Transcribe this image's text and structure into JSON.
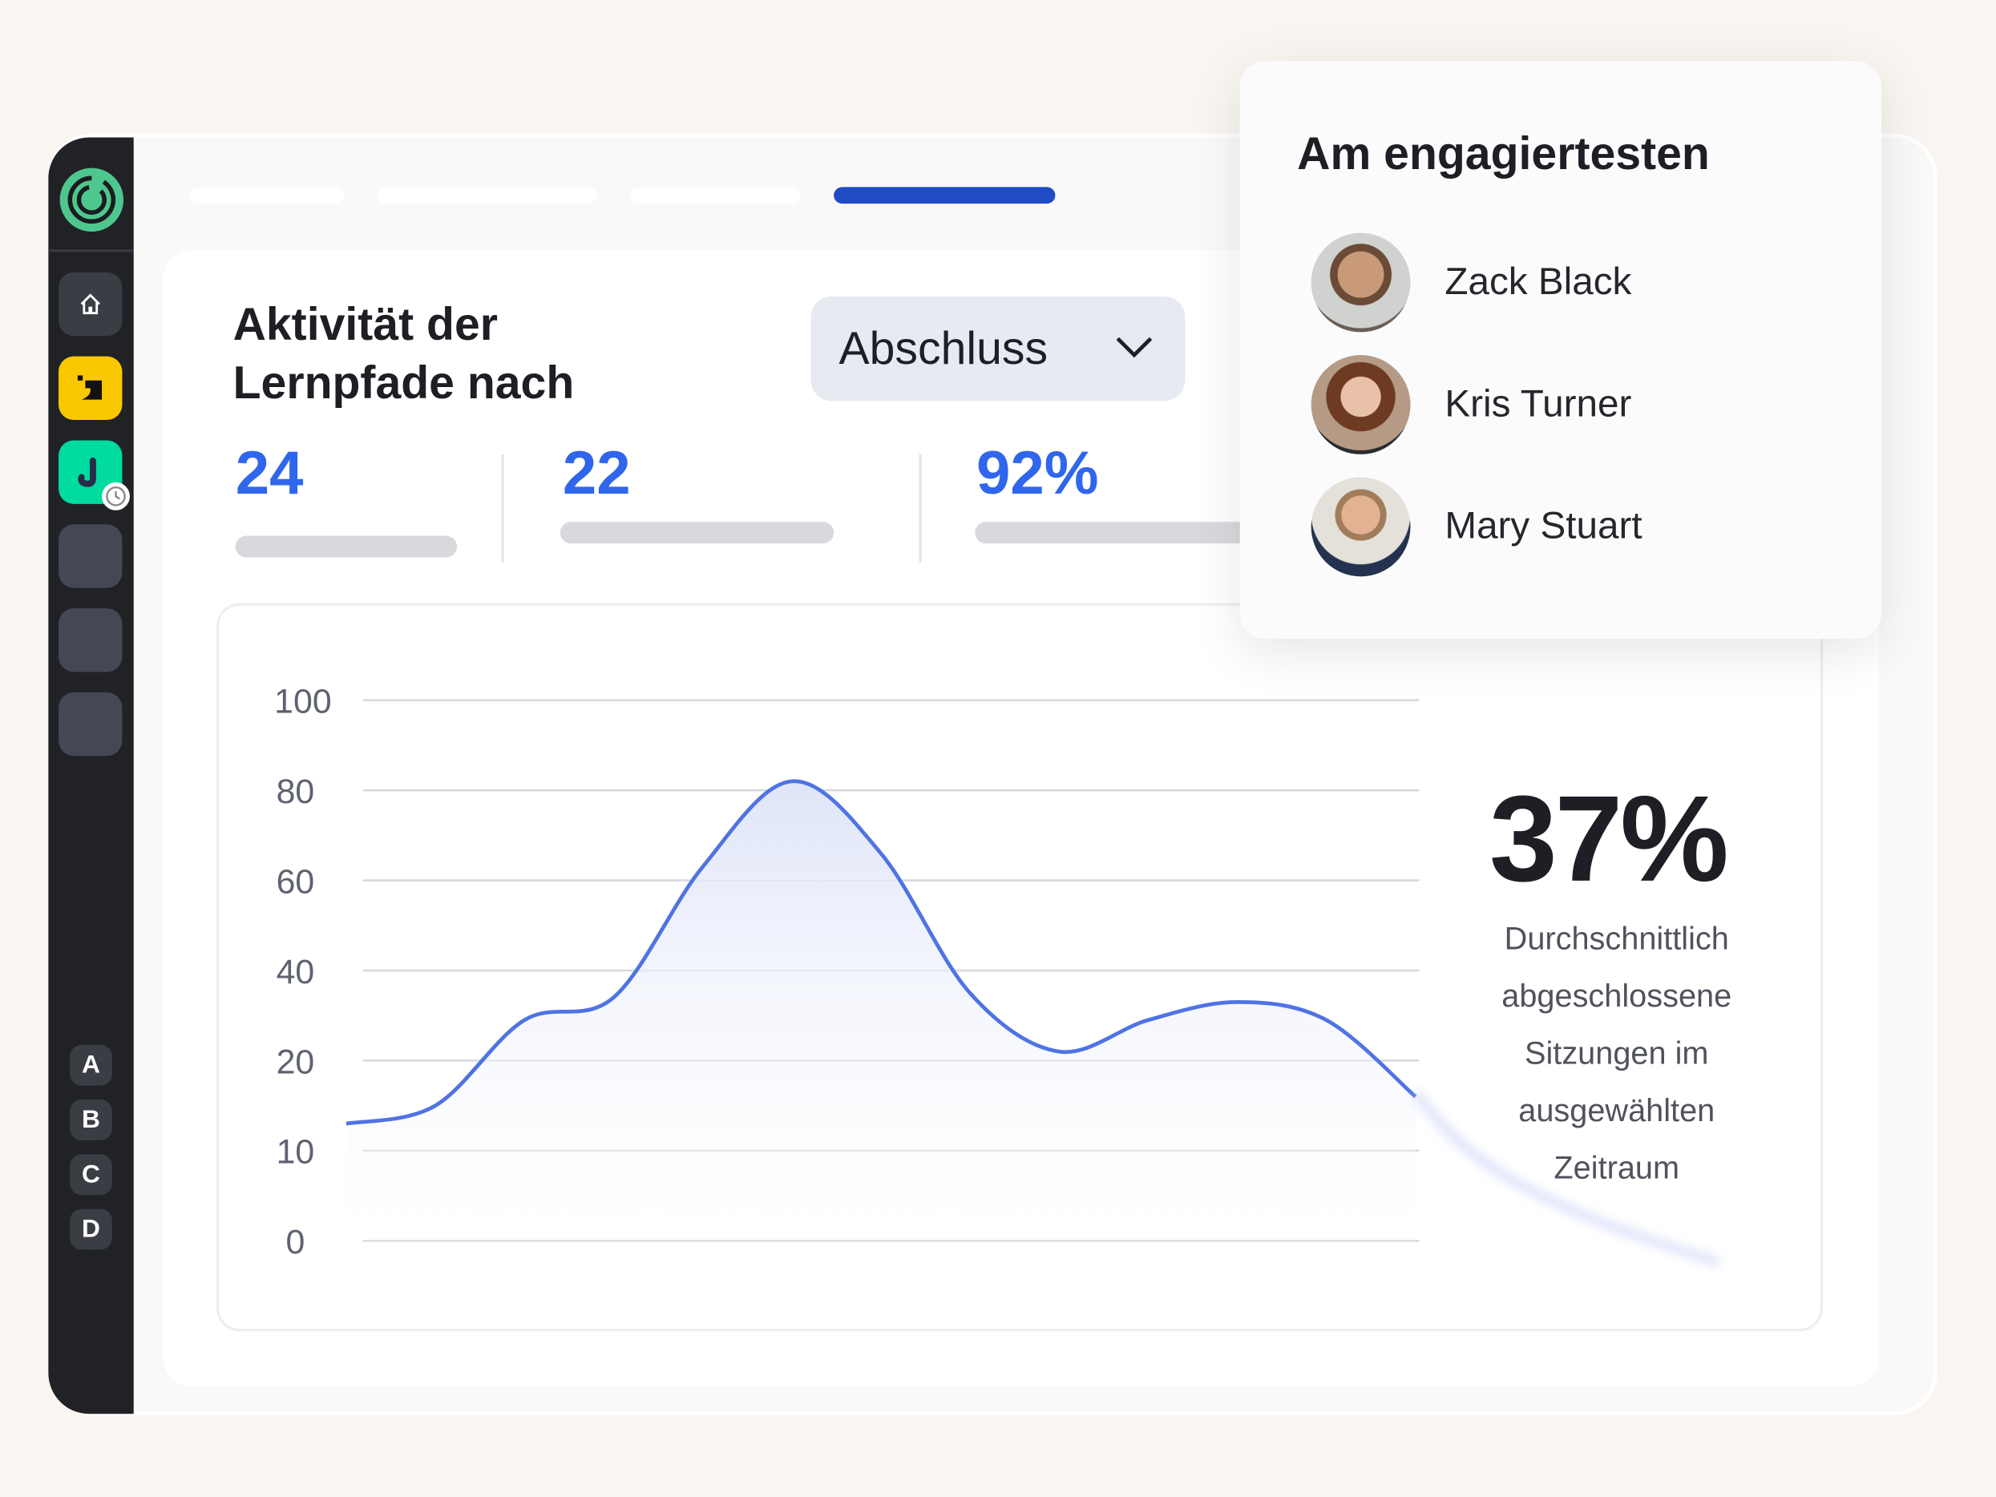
{
  "sidebar": {
    "items": [
      {
        "name": "home",
        "icon": "home-icon"
      },
      {
        "name": "app-b",
        "icon": "b-app-icon",
        "color": "#fac800"
      },
      {
        "name": "app-j",
        "icon": "j-app-icon",
        "color": "#00dba0"
      },
      {
        "name": "empty-1"
      },
      {
        "name": "empty-2"
      },
      {
        "name": "empty-3"
      }
    ],
    "letters": [
      "A",
      "B",
      "C",
      "D"
    ]
  },
  "tabs": {
    "active_index": 3,
    "accent": "#1f4bc4"
  },
  "panel": {
    "title_line1": "Aktivität der",
    "title_line2": "Lernpfade nach",
    "dropdown_value": "Abschluss"
  },
  "stats": [
    {
      "value": "24"
    },
    {
      "value": "22"
    },
    {
      "value": "92%"
    }
  ],
  "summary": {
    "value": "37%",
    "caption_lines": [
      "Durchschnittlich",
      "abgeschlossene",
      "Sitzungen im",
      "ausgewählten",
      "Zeitraum"
    ]
  },
  "popup": {
    "title": "Am engagiertesten",
    "people": [
      {
        "name": "Zack Black"
      },
      {
        "name": "Kris Turner"
      },
      {
        "name": "Mary Stuart"
      }
    ]
  },
  "chart_data": {
    "type": "area",
    "yticks": [
      0,
      10,
      20,
      40,
      60,
      80,
      100
    ],
    "ytick_labels": [
      "0",
      "10",
      "20",
      "40",
      "60",
      "80",
      "100"
    ],
    "ylim": [
      0,
      100
    ],
    "grid": true,
    "color": "#4f73e3",
    "x": [
      0,
      1,
      2,
      3,
      4,
      5,
      6,
      7,
      8,
      9,
      10,
      11,
      12
    ],
    "values": [
      13,
      15,
      29,
      34,
      63,
      82,
      66,
      35,
      22,
      29,
      33,
      29,
      16
    ]
  }
}
